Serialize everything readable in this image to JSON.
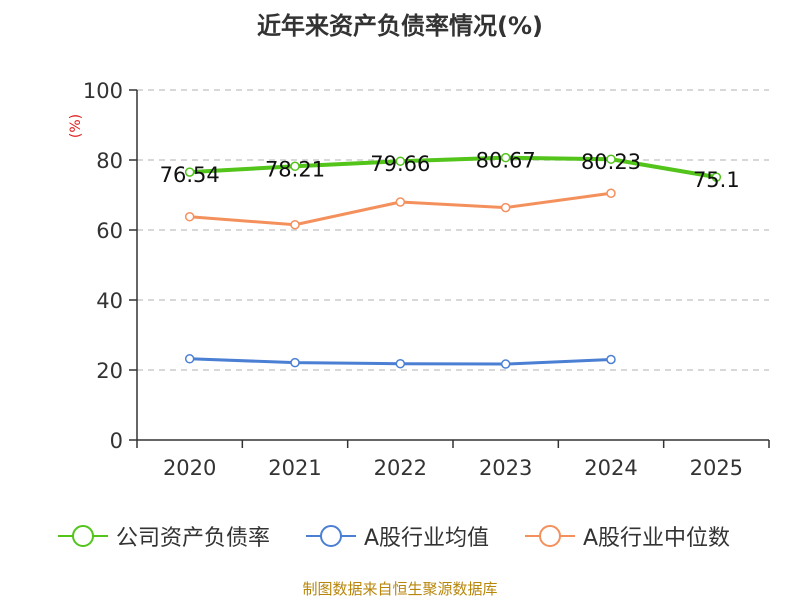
{
  "title": "近年来资产负债率情况(%)",
  "footer": "制图数据来自恒生聚源数据库",
  "chart_data": {
    "type": "line",
    "title": "近年来资产负债率情况(%)",
    "ylabel": "(%)",
    "xlabel": "",
    "categories": [
      "2020",
      "2021",
      "2022",
      "2023",
      "2024",
      "2025"
    ],
    "ylim": [
      0,
      100
    ],
    "yticks": [
      0,
      20,
      40,
      60,
      80,
      100
    ],
    "grid": true,
    "legend_position": "bottom",
    "series": [
      {
        "name": "公司资产负债率",
        "color": "#52c41a",
        "values": [
          76.54,
          78.21,
          79.66,
          80.67,
          80.23,
          75.1
        ],
        "labels": [
          "76.54",
          "78.21",
          "79.66",
          "80.67",
          "80.23",
          "75.1"
        ]
      },
      {
        "name": "A股行业均值",
        "color": "#4a7fd4",
        "values": [
          23.2,
          22.1,
          21.8,
          21.7,
          23.0,
          null
        ]
      },
      {
        "name": "A股行业中位数",
        "color": "#f4905c",
        "values": [
          63.8,
          61.5,
          68.0,
          66.4,
          70.5,
          null
        ]
      }
    ]
  }
}
